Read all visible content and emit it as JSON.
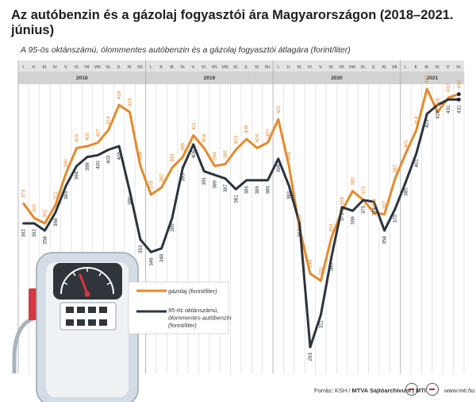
{
  "title": "Az autóbenzin és a gázolaj fogyasztói ára Magyarországon (2018–2021. június)",
  "subtitle": "A 95-ös oktánszámú, ólommentes autóbenzin és a gázolaj fogyasztói átlagára (forint/liter)",
  "footer": {
    "source_prefix": "Forrás: KSH / ",
    "source_bold": "MTVA Sajtóarchívum | MTI",
    "url": "www.mti.hu"
  },
  "colors": {
    "diesel": "#e8892b",
    "petrol": "#2c343c",
    "grid": "#d4d4d4",
    "header_bg": "#d2d2d2",
    "header_rows_bg": "#e4e4e4"
  },
  "icons": [
    "fuel-pump-icon",
    "mti-logo-icon",
    "mtva-logo-icon"
  ],
  "chart_data": {
    "type": "line",
    "title": "Az autóbenzin és a gázolaj fogyasztói ára Magyarországon (2018–2021. június)",
    "subtitle": "A 95-ös oktánszámú, ólommentes autóbenzin és a gázolaj fogyasztói átlagára (forint/liter)",
    "years": [
      "2018",
      "2019",
      "2020",
      "2021"
    ],
    "month_labels": [
      "I.",
      "II.",
      "III.",
      "IV.",
      "V.",
      "VI.",
      "VII.",
      "VIII.",
      "IX.",
      "X.",
      "XI.",
      "XII.",
      "I.",
      "II.",
      "III.",
      "IV.",
      "V.",
      "VI.",
      "VII.",
      "VIII.",
      "IX.",
      "X.",
      "XI.",
      "XII.",
      "I.",
      "II.",
      "III.",
      "IV.",
      "V.",
      "VI.",
      "VII.",
      "VIII.",
      "IX.",
      "X.",
      "XI.",
      "XII.",
      "I.",
      "II.",
      "III.",
      "IV.",
      "V.",
      "VI."
    ],
    "ylim": [
      285,
      440
    ],
    "grid": true,
    "legend_position": "bottom-center",
    "series": [
      {
        "name": "gázolaj (forint/liter)",
        "values": [
          373,
          365,
          362,
          372,
          390,
          404,
          405,
          407,
          414,
          428,
          424,
          394,
          378,
          382,
          393,
          399,
          411,
          404,
          394,
          395,
          403,
          409,
          404,
          407,
          420,
          394,
          359,
          334,
          330,
          354,
          369,
          380,
          375,
          368,
          367,
          387,
          401,
          414,
          437,
          424,
          432,
          434
        ]
      },
      {
        "name": "95-ös oktánszámú, ólommentes autóbenzin (forint/liter)",
        "values": [
          362,
          362,
          358,
          368,
          383,
          394,
          399,
          400,
          403,
          405,
          380,
          353,
          346,
          348,
          365,
          393,
          406,
          391,
          389,
          387,
          381,
          386,
          386,
          386,
          398,
          383,
          362,
          293,
          311,
          343,
          371,
          369,
          375,
          374,
          358,
          370,
          385,
          401,
          423,
          428,
          431,
          431
        ]
      }
    ]
  }
}
